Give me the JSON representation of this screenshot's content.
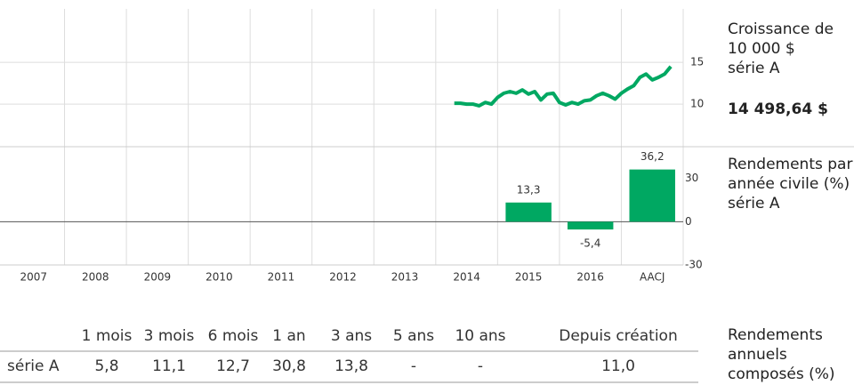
{
  "chart_data": [
    {
      "type": "line",
      "title": "Croissance de 10 000 $",
      "annotation": "14 498,64 $",
      "series": [
        {
          "name": "série A",
          "color": "#00a862",
          "x": [
            2014.3,
            2014.4,
            2014.5,
            2014.6,
            2014.7,
            2014.8,
            2014.9,
            2015.0,
            2015.1,
            2015.2,
            2015.3,
            2015.4,
            2015.5,
            2015.6,
            2015.7,
            2015.8,
            2015.9,
            2016.0,
            2016.1,
            2016.2,
            2016.3,
            2016.4,
            2016.5,
            2016.6,
            2016.7,
            2016.8,
            2016.9,
            2017.0,
            2017.1,
            2017.2,
            2017.3,
            2017.4,
            2017.5,
            2017.6,
            2017.7,
            2017.8
          ],
          "values": [
            10.1,
            10.1,
            10.0,
            10.0,
            9.8,
            10.2,
            10.0,
            10.8,
            11.3,
            11.5,
            11.3,
            11.7,
            11.2,
            11.5,
            10.5,
            11.2,
            11.3,
            10.2,
            9.9,
            10.2,
            10.0,
            10.4,
            10.5,
            11.0,
            11.3,
            11.0,
            10.6,
            11.3,
            11.8,
            12.2,
            13.2,
            13.6,
            12.9,
            13.2,
            13.6,
            14.5
          ]
        }
      ],
      "xlim": [
        2007,
        2018
      ],
      "ylim": [
        4.9,
        21.4
      ],
      "yticks": [
        10,
        15
      ],
      "grid": true
    },
    {
      "type": "bar",
      "title": "Rendements par année civile (%)",
      "categories": [
        "2007",
        "2008",
        "2009",
        "2010",
        "2011",
        "2012",
        "2013",
        "2014",
        "2015",
        "2016",
        "AACJ"
      ],
      "series": [
        {
          "name": "série A",
          "color": "#00a862",
          "values": [
            null,
            null,
            null,
            null,
            null,
            null,
            null,
            null,
            13.3,
            -5.4,
            36.2
          ],
          "value_labels": [
            null,
            null,
            null,
            null,
            null,
            null,
            null,
            null,
            "13,3",
            "-5,4",
            "36,2"
          ]
        }
      ],
      "ylim": [
        -30,
        52
      ],
      "yticks": [
        -30,
        0,
        30
      ],
      "grid": false
    }
  ],
  "table": {
    "title": "Rendements annuels composés (%)",
    "columns": [
      "1 mois",
      "3 mois",
      "6 mois",
      "1 an",
      "3 ans",
      "5 ans",
      "10 ans",
      "Depuis création"
    ],
    "rows": [
      {
        "label": "série A",
        "cells": [
          "5,8",
          "11,1",
          "12,7",
          "30,8",
          "13,8",
          "-",
          "-",
          "11,0"
        ]
      }
    ]
  }
}
